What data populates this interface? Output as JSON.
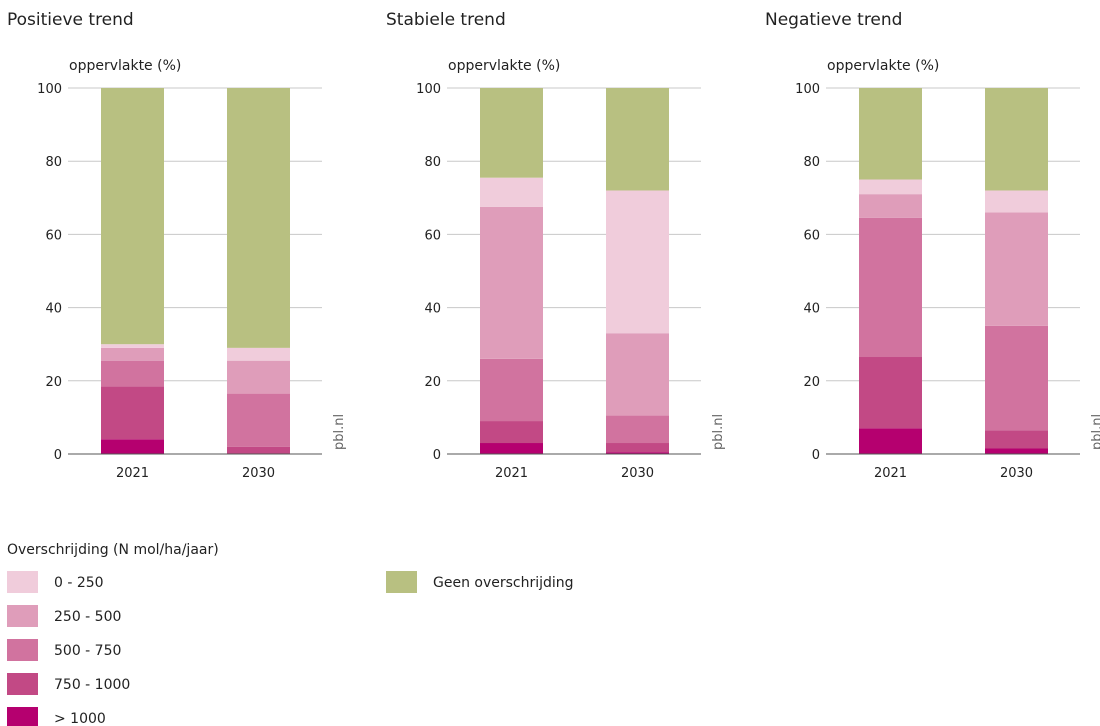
{
  "chart_data": [
    {
      "type": "bar",
      "stacked": true,
      "title": "Positieve trend",
      "ylabel": "oppervlakte (%)",
      "ylim": [
        0,
        100
      ],
      "yticks": [
        0,
        20,
        40,
        60,
        80,
        100
      ],
      "categories": [
        "2021",
        "2030"
      ],
      "source": "pbl.nl",
      "series": [
        {
          "name": "> 1000",
          "values": [
            4,
            0
          ]
        },
        {
          "name": "750 - 1000",
          "values": [
            14.5,
            2
          ]
        },
        {
          "name": "500 - 750",
          "values": [
            7,
            14.5
          ]
        },
        {
          "name": "250 - 500",
          "values": [
            3.5,
            9
          ]
        },
        {
          "name": "0 - 250",
          "values": [
            1,
            3.5
          ]
        },
        {
          "name": "Geen overschrijding",
          "values": [
            70,
            71
          ]
        }
      ]
    },
    {
      "type": "bar",
      "stacked": true,
      "title": "Stabiele trend",
      "ylabel": "oppervlakte (%)",
      "ylim": [
        0,
        100
      ],
      "yticks": [
        0,
        20,
        40,
        60,
        80,
        100
      ],
      "categories": [
        "2021",
        "2030"
      ],
      "source": "pbl.nl",
      "series": [
        {
          "name": "> 1000",
          "values": [
            3,
            0.5
          ]
        },
        {
          "name": "750 - 1000",
          "values": [
            6,
            2.5
          ]
        },
        {
          "name": "500 - 750",
          "values": [
            17,
            7.5
          ]
        },
        {
          "name": "250 - 500",
          "values": [
            41.5,
            22.5
          ]
        },
        {
          "name": "0 - 250",
          "values": [
            8,
            39
          ]
        },
        {
          "name": "Geen overschrijding",
          "values": [
            24.5,
            28
          ]
        }
      ]
    },
    {
      "type": "bar",
      "stacked": true,
      "title": "Negatieve trend",
      "ylabel": "oppervlakte (%)",
      "ylim": [
        0,
        100
      ],
      "yticks": [
        0,
        20,
        40,
        60,
        80,
        100
      ],
      "categories": [
        "2021",
        "2030"
      ],
      "source": "pbl.nl",
      "series": [
        {
          "name": "> 1000",
          "values": [
            7,
            1.5
          ]
        },
        {
          "name": "750 - 1000",
          "values": [
            19.5,
            5
          ]
        },
        {
          "name": "500 - 750",
          "values": [
            38,
            28.5
          ]
        },
        {
          "name": "250 - 500",
          "values": [
            6.5,
            31
          ]
        },
        {
          "name": "0 - 250",
          "values": [
            4,
            6
          ]
        },
        {
          "name": "Geen overschrijding",
          "values": [
            25,
            28
          ]
        }
      ]
    }
  ],
  "legend": {
    "title": "Overschrijding (N mol/ha/jaar)",
    "items": [
      {
        "label": "0 - 250",
        "color": "#f0ccdb"
      },
      {
        "label": "250 - 500",
        "color": "#df9dba"
      },
      {
        "label": "500 - 750",
        "color": "#d1739f"
      },
      {
        "label": "750 - 1000",
        "color": "#c24985"
      },
      {
        "label": "> 1000",
        "color": "#b5006f"
      },
      {
        "label": "Geen overschrijding",
        "color": "#b8c081"
      }
    ]
  },
  "colors": {
    "> 1000": "#b5006f",
    "750 - 1000": "#c24985",
    "500 - 750": "#d1739f",
    "250 - 500": "#df9dba",
    "0 - 250": "#f0ccdb",
    "Geen overschrijding": "#b8c081"
  }
}
